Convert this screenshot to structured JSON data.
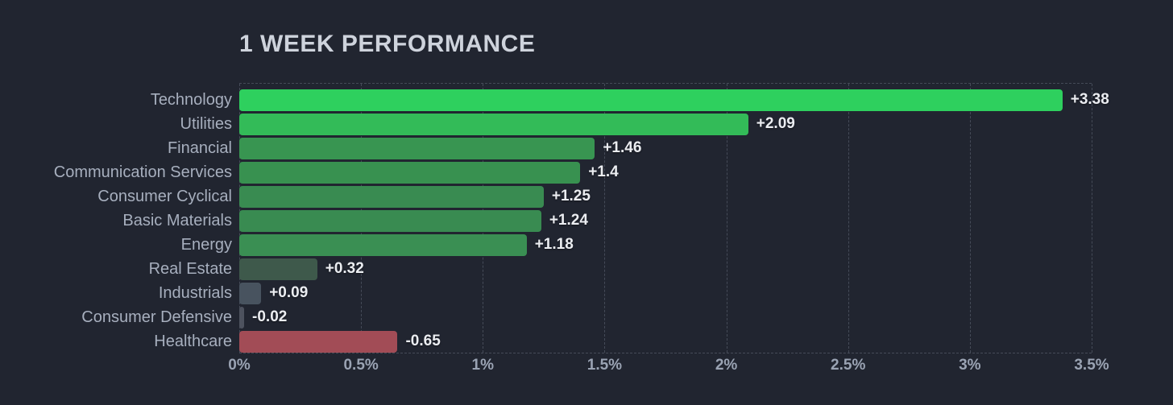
{
  "header": {
    "title": "1 WEEK PERFORMANCE"
  },
  "colors": {
    "background": "#212530",
    "title_text": "#ced3dc",
    "category_label": "#a7afbe",
    "tick_label": "#9aa3b3",
    "value_label": "#ebedf1",
    "gridline": "#454b58",
    "positive_strong": "#2ed05e",
    "negative": "#a24c56"
  },
  "chart_data": {
    "type": "bar",
    "orientation": "horizontal",
    "title": "1 WEEK PERFORMANCE",
    "categories": [
      "Technology",
      "Utilities",
      "Financial",
      "Communication Services",
      "Consumer Cyclical",
      "Basic Materials",
      "Energy",
      "Real Estate",
      "Industrials",
      "Consumer Defensive",
      "Healthcare"
    ],
    "values": [
      3.38,
      2.09,
      1.46,
      1.4,
      1.25,
      1.24,
      1.18,
      0.32,
      0.09,
      -0.02,
      -0.65
    ],
    "value_labels": [
      "+3.38",
      "+2.09",
      "+1.46",
      "+1.4",
      "+1.25",
      "+1.24",
      "+1.18",
      "+0.32",
      "+0.09",
      "-0.02",
      "-0.65"
    ],
    "bar_colors": [
      "#2ed05e",
      "#33bb58",
      "#389551",
      "#389150",
      "#398b51",
      "#398b51",
      "#3a8f53",
      "#3e594b",
      "#48535f",
      "#4d525e",
      "#a24c56"
    ],
    "xlabel": "",
    "ylabel": "",
    "xlim": [
      0,
      3.5
    ],
    "x_tick_values": [
      0,
      0.5,
      1,
      1.5,
      2,
      2.5,
      3,
      3.5
    ],
    "x_tick_labels": [
      "0%",
      "0.5%",
      "1%",
      "1.5%",
      "2%",
      "2.5%",
      "3%",
      "3.5%"
    ],
    "grid": "vertical-dashed",
    "legend": false,
    "bars_drawn_from_zero_rightward": true,
    "negative_bars_shown_as_absolute_length": true
  }
}
